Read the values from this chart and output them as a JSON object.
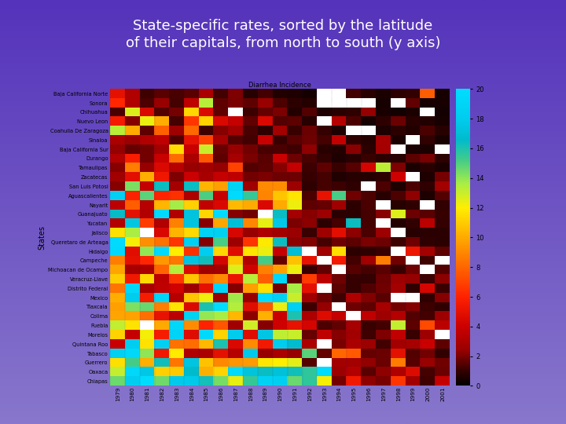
{
  "title_line1": "State-specific rates, sorted by the latitude",
  "title_line2": "of their capitals, from north to south (y axis)",
  "title_color": "white",
  "heatmap_title": "Diarrhea Incidence",
  "states": [
    "Baja California Norte",
    "Sonora",
    "Chihuahua",
    "Nuevo Leon",
    "Coahuila De Zaragoza",
    "Sinaloa",
    "Baja California Sur",
    "Durango",
    "Tamaulipas",
    "Zacatecas",
    "San Luis Potosi",
    "Aguascalientes",
    "Nayarit",
    "Guanajuato",
    "Yucatan",
    "Jalisco",
    "Queretaro de Arteaga",
    "Hidalgo",
    "Campeche",
    "Michoacan de Ocampo",
    "Veracruz-Llave",
    "Distrito Federal",
    "Mexico",
    "Tlaxcala",
    "Colima",
    "Puebla",
    "Morelos",
    "Quintana Roo",
    "Tabasco",
    "Guerrero",
    "Oaxaca",
    "Chiapas"
  ],
  "years": [
    1979,
    1980,
    1981,
    1982,
    1983,
    1984,
    1985,
    1986,
    1987,
    1988,
    1989,
    1990,
    1991,
    1992,
    1993,
    1994,
    1995,
    1996,
    1997,
    1998,
    1999,
    2000,
    2001
  ],
  "vmin": 0,
  "vmax": 20,
  "colorbar_ticks": [
    0,
    2,
    4,
    6,
    8,
    10,
    12,
    14,
    16,
    18,
    20
  ],
  "ylabel": "States",
  "fig_bg_top": "#5533bb",
  "fig_bg_bottom": "#8877cc",
  "colormap_nodes": [
    [
      0.0,
      "#000000"
    ],
    [
      0.05,
      "#330000"
    ],
    [
      0.12,
      "#990000"
    ],
    [
      0.2,
      "#cc0000"
    ],
    [
      0.3,
      "#ff2200"
    ],
    [
      0.4,
      "#ff6600"
    ],
    [
      0.5,
      "#ffaa00"
    ],
    [
      0.6,
      "#ffee00"
    ],
    [
      0.68,
      "#aaee44"
    ],
    [
      0.76,
      "#44cc88"
    ],
    [
      0.83,
      "#00bbcc"
    ],
    [
      0.9,
      "#00ccee"
    ],
    [
      1.0,
      "#00ddff"
    ]
  ]
}
